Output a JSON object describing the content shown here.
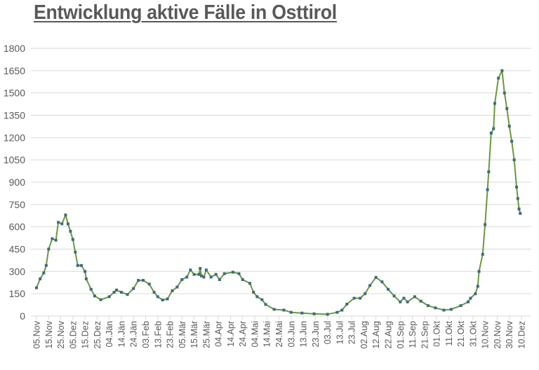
{
  "chart_data": {
    "type": "line",
    "title": "Entwicklung aktive Fälle in Osttirol",
    "xlabel": "",
    "ylabel": "",
    "ylim": [
      0,
      1800
    ],
    "yticks": [
      0,
      150,
      300,
      450,
      600,
      750,
      900,
      1050,
      1200,
      1350,
      1500,
      1650,
      1800
    ],
    "xlim": [
      "2020-11-05",
      "2021-12-10"
    ],
    "xtick_labels": [
      "05.Nov",
      "15.Nov",
      "25.Nov",
      "05.Dez",
      "15.Dez",
      "25.Dez",
      "04.Jän",
      "14.Jän",
      "24.Jän",
      "03.Feb",
      "13.Feb",
      "23.Feb",
      "05.Mär",
      "15.Mär",
      "25.Mär",
      "04.Apr",
      "14.Apr",
      "24.Apr",
      "04.Mai",
      "14.Mai",
      "24.Mai",
      "03.Jun",
      "13.Jun",
      "23.Jun",
      "03.Jul",
      "13.Jul",
      "23.Jul",
      "02.Aug",
      "12.Aug",
      "22.Aug",
      "01.Sep",
      "11.Sep",
      "21.Sep",
      "01.Okt",
      "11.Okt",
      "21.Okt",
      "31.Okt",
      "10.Nov",
      "20.Nov",
      "30.Nov",
      "10.Dez"
    ],
    "grid": true,
    "legend": "none",
    "colors": {
      "line": "#6a9a3a",
      "marker": "#3e6b7e",
      "grid": "#d9d9d9",
      "text": "#595959"
    },
    "series": [
      {
        "points": [
          [
            "2020-11-05",
            190
          ],
          [
            "2020-11-08",
            250
          ],
          [
            "2020-11-11",
            290
          ],
          [
            "2020-11-13",
            340
          ],
          [
            "2020-11-15",
            450
          ],
          [
            "2020-11-18",
            520
          ],
          [
            "2020-11-21",
            510
          ],
          [
            "2020-11-23",
            630
          ],
          [
            "2020-11-26",
            620
          ],
          [
            "2020-11-29",
            680
          ],
          [
            "2020-12-01",
            620
          ],
          [
            "2020-12-03",
            570
          ],
          [
            "2020-12-05",
            515
          ],
          [
            "2020-12-07",
            430
          ],
          [
            "2020-12-09",
            340
          ],
          [
            "2020-12-12",
            340
          ],
          [
            "2020-12-15",
            300
          ],
          [
            "2020-12-16",
            250
          ],
          [
            "2020-12-20",
            180
          ],
          [
            "2020-12-23",
            135
          ],
          [
            "2020-12-28",
            110
          ],
          [
            "2021-01-04",
            130
          ],
          [
            "2021-01-08",
            160
          ],
          [
            "2021-01-10",
            175
          ],
          [
            "2021-01-14",
            160
          ],
          [
            "2021-01-19",
            145
          ],
          [
            "2021-01-24",
            185
          ],
          [
            "2021-01-28",
            240
          ],
          [
            "2021-02-01",
            240
          ],
          [
            "2021-02-06",
            215
          ],
          [
            "2021-02-10",
            160
          ],
          [
            "2021-02-13",
            130
          ],
          [
            "2021-02-17",
            108
          ],
          [
            "2021-02-21",
            115
          ],
          [
            "2021-02-25",
            170
          ],
          [
            "2021-03-01",
            195
          ],
          [
            "2021-03-05",
            245
          ],
          [
            "2021-03-09",
            262
          ],
          [
            "2021-03-12",
            310
          ],
          [
            "2021-03-15",
            280
          ],
          [
            "2021-03-19",
            280
          ],
          [
            "2021-03-20",
            320
          ],
          [
            "2021-03-21",
            270
          ],
          [
            "2021-03-23",
            262
          ],
          [
            "2021-03-25",
            310
          ],
          [
            "2021-03-29",
            262
          ],
          [
            "2021-04-02",
            280
          ],
          [
            "2021-04-05",
            245
          ],
          [
            "2021-04-09",
            285
          ],
          [
            "2021-04-16",
            295
          ],
          [
            "2021-04-21",
            285
          ],
          [
            "2021-04-24",
            245
          ],
          [
            "2021-04-30",
            220
          ],
          [
            "2021-05-03",
            160
          ],
          [
            "2021-05-06",
            130
          ],
          [
            "2021-05-10",
            110
          ],
          [
            "2021-05-13",
            78
          ],
          [
            "2021-05-20",
            45
          ],
          [
            "2021-05-28",
            40
          ],
          [
            "2021-06-03",
            25
          ],
          [
            "2021-06-12",
            20
          ],
          [
            "2021-06-22",
            15
          ],
          [
            "2021-07-03",
            12
          ],
          [
            "2021-07-11",
            25
          ],
          [
            "2021-07-15",
            40
          ],
          [
            "2021-07-19",
            80
          ],
          [
            "2021-07-25",
            120
          ],
          [
            "2021-07-30",
            120
          ],
          [
            "2021-08-03",
            150
          ],
          [
            "2021-08-07",
            205
          ],
          [
            "2021-08-12",
            260
          ],
          [
            "2021-08-17",
            230
          ],
          [
            "2021-08-22",
            180
          ],
          [
            "2021-08-27",
            135
          ],
          [
            "2021-09-01",
            95
          ],
          [
            "2021-09-04",
            120
          ],
          [
            "2021-09-07",
            95
          ],
          [
            "2021-09-13",
            130
          ],
          [
            "2021-09-18",
            100
          ],
          [
            "2021-09-24",
            70
          ],
          [
            "2021-09-30",
            55
          ],
          [
            "2021-10-07",
            40
          ],
          [
            "2021-10-13",
            45
          ],
          [
            "2021-10-21",
            70
          ],
          [
            "2021-10-27",
            95
          ],
          [
            "2021-10-29",
            120
          ],
          [
            "2021-11-02",
            150
          ],
          [
            "2021-11-04",
            200
          ],
          [
            "2021-11-05",
            300
          ],
          [
            "2021-11-08",
            415
          ],
          [
            "2021-11-10",
            615
          ],
          [
            "2021-11-12",
            850
          ],
          [
            "2021-11-13",
            970
          ],
          [
            "2021-11-15",
            1230
          ],
          [
            "2021-11-17",
            1260
          ],
          [
            "2021-11-18",
            1430
          ],
          [
            "2021-11-21",
            1600
          ],
          [
            "2021-11-24",
            1650
          ],
          [
            "2021-11-26",
            1500
          ],
          [
            "2021-11-28",
            1395
          ],
          [
            "2021-11-30",
            1277
          ],
          [
            "2021-12-02",
            1175
          ],
          [
            "2021-12-04",
            1050
          ],
          [
            "2021-12-06",
            867
          ],
          [
            "2021-12-07",
            790
          ],
          [
            "2021-12-08",
            720
          ],
          [
            "2021-12-09",
            690
          ]
        ]
      }
    ]
  }
}
